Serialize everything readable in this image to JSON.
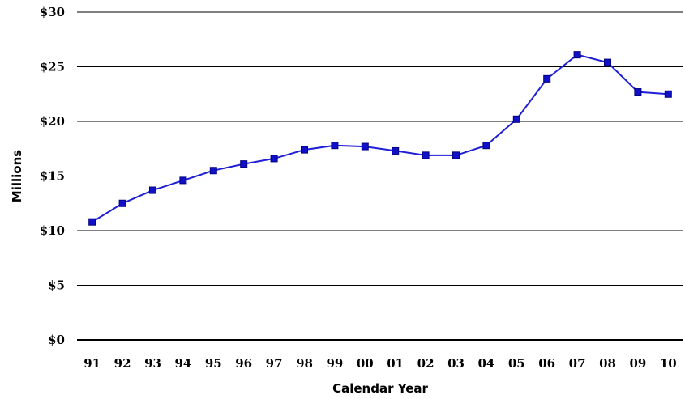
{
  "chart_data": {
    "type": "line",
    "title": "",
    "xlabel": "Calendar Year",
    "ylabel": "Millions",
    "categories": [
      "91",
      "92",
      "93",
      "94",
      "95",
      "96",
      "97",
      "98",
      "99",
      "00",
      "01",
      "02",
      "03",
      "04",
      "05",
      "06",
      "07",
      "08",
      "09",
      "10"
    ],
    "series": [
      {
        "values": [
          10.8,
          12.5,
          13.7,
          14.6,
          15.5,
          16.1,
          16.6,
          17.4,
          17.8,
          17.7,
          17.3,
          16.9,
          16.9,
          17.8,
          20.2,
          23.9,
          26.1,
          25.4,
          22.7,
          22.5
        ]
      }
    ],
    "ylim": [
      0,
      30
    ],
    "yticks": [
      0,
      5,
      10,
      15,
      20,
      25,
      30
    ],
    "ytick_labels": [
      "$0",
      "$5",
      "$10",
      "$15",
      "$20",
      "$25",
      "$30"
    ],
    "grid": true,
    "colors": {
      "line": "#1f1fd6",
      "marker": "#1010c8",
      "marker_edge": "#000080",
      "grid": "#000000"
    }
  }
}
